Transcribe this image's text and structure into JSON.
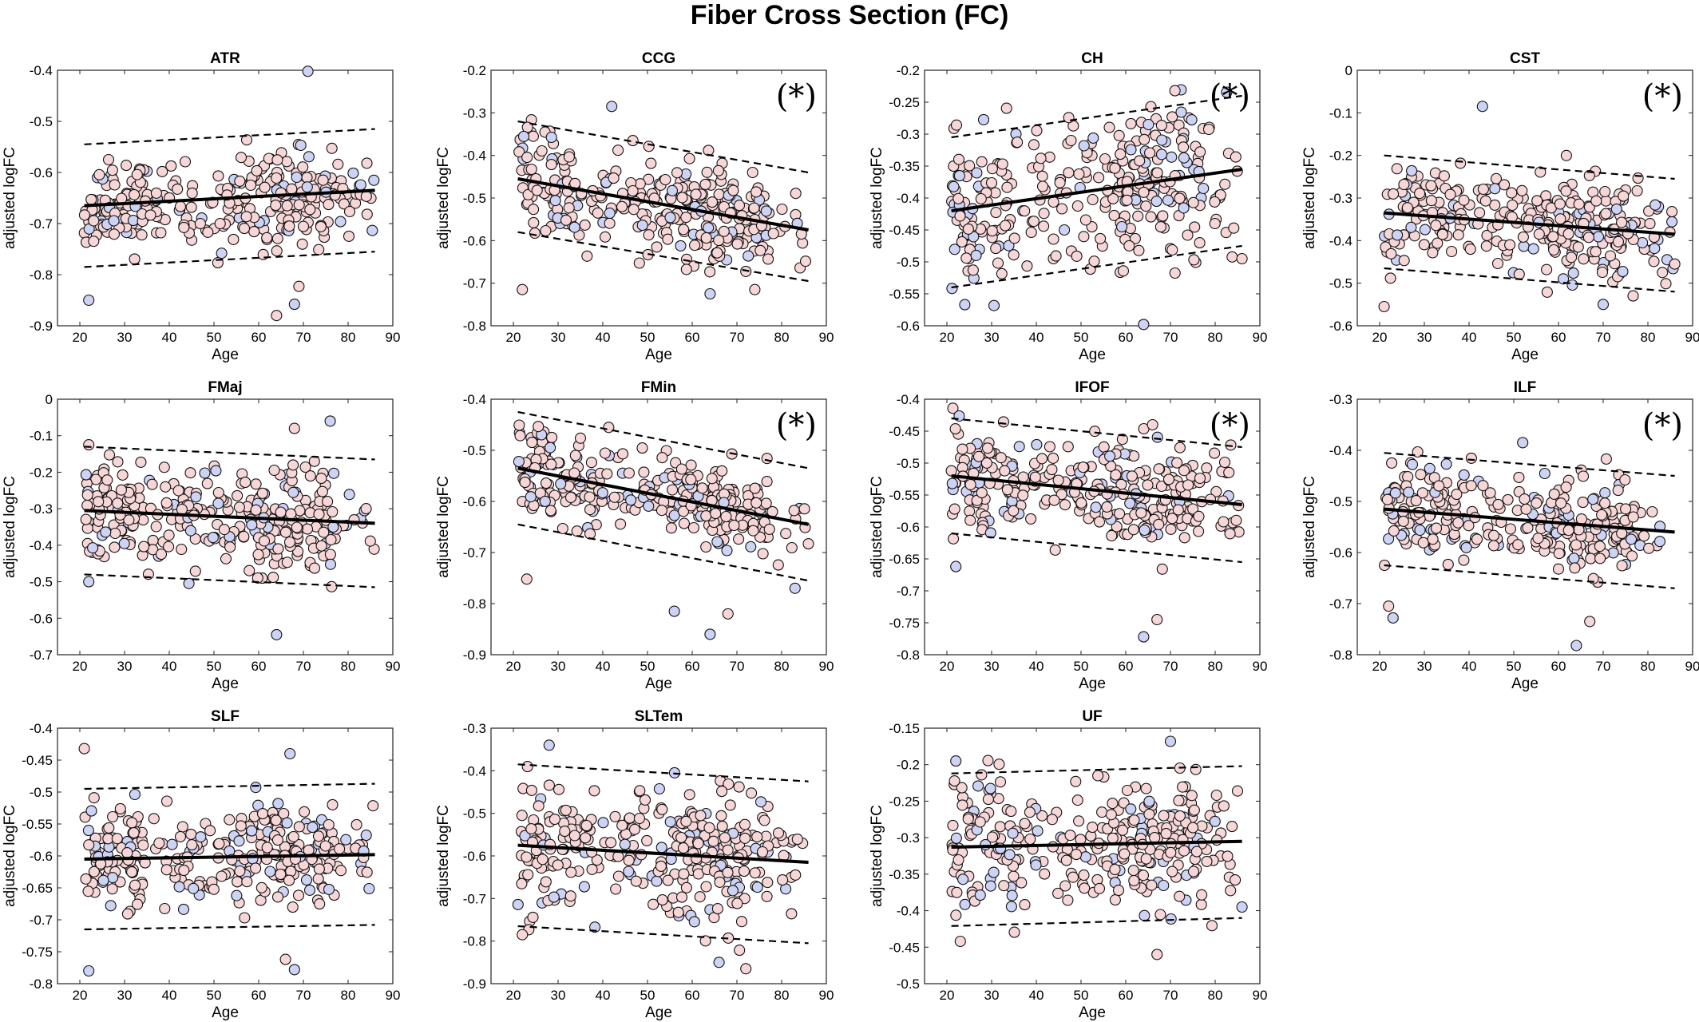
{
  "title": "Fiber Cross Section (FC)",
  "colors": {
    "female": "#f6d6d6",
    "male": "#cdd3f5",
    "line": "#000000"
  },
  "chart_data": [
    {
      "type": "scatter",
      "title": "ATR",
      "xlabel": "Age",
      "ylabel": "adjusted logFC",
      "xlim": [
        15,
        90
      ],
      "ylim": [
        -0.9,
        -0.4
      ],
      "yticks": [
        -0.4,
        -0.5,
        -0.6,
        -0.7,
        -0.8,
        -0.9
      ],
      "yticklabels": [
        "-0.4",
        "-0.5",
        "-0.6",
        "-0.7",
        "-0.8",
        "-0.9"
      ],
      "fit": [
        [
          21,
          -0.665
        ],
        [
          86,
          -0.635
        ]
      ],
      "upper": [
        [
          21,
          -0.545
        ],
        [
          86,
          -0.515
        ]
      ],
      "lower": [
        [
          21,
          -0.785
        ],
        [
          86,
          -0.755
        ]
      ],
      "significant": false,
      "center": -0.65,
      "spread": 0.045,
      "outliers": [
        [
          71,
          -0.402
        ],
        [
          64,
          -0.88
        ],
        [
          68,
          -0.858
        ],
        [
          69,
          -0.823
        ],
        [
          22,
          -0.85
        ]
      ]
    },
    {
      "type": "scatter",
      "title": "CCG",
      "xlabel": "Age",
      "ylabel": "adjusted logFC",
      "xlim": [
        15,
        90
      ],
      "ylim": [
        -0.8,
        -0.2
      ],
      "yticks": [
        -0.2,
        -0.3,
        -0.4,
        -0.5,
        -0.6,
        -0.7,
        -0.8
      ],
      "yticklabels": [
        "-0.2",
        "-0.3",
        "-0.4",
        "-0.5",
        "-0.6",
        "-0.7",
        "-0.8"
      ],
      "fit": [
        [
          21,
          -0.455
        ],
        [
          86,
          -0.575
        ]
      ],
      "upper": [
        [
          21,
          -0.32
        ],
        [
          86,
          -0.44
        ]
      ],
      "lower": [
        [
          21,
          -0.58
        ],
        [
          86,
          -0.695
        ]
      ],
      "significant": true,
      "annotation": "(*)",
      "center": -0.51,
      "spread": 0.06,
      "outliers": [
        [
          42,
          -0.285
        ],
        [
          22,
          -0.715
        ],
        [
          64,
          -0.725
        ],
        [
          74,
          -0.715
        ]
      ]
    },
    {
      "type": "scatter",
      "title": "CH",
      "xlabel": "Age",
      "ylabel": "adjusted logFC",
      "xlim": [
        15,
        90
      ],
      "ylim": [
        -0.6,
        -0.2
      ],
      "yticks": [
        -0.2,
        -0.25,
        -0.3,
        -0.35,
        -0.4,
        -0.45,
        -0.5,
        -0.55,
        -0.6
      ],
      "yticklabels": [
        "-0.2",
        "-0.25",
        "-0.3",
        "-0.35",
        "-0.4",
        "-0.45",
        "-0.5",
        "-0.55",
        "-0.6"
      ],
      "fit": [
        [
          21,
          -0.42
        ],
        [
          86,
          -0.355
        ]
      ],
      "upper": [
        [
          21,
          -0.305
        ],
        [
          86,
          -0.24
        ]
      ],
      "lower": [
        [
          21,
          -0.54
        ],
        [
          86,
          -0.475
        ]
      ],
      "significant": true,
      "annotation": "(*)",
      "center": -0.39,
      "spread": 0.06,
      "outliers": [
        [
          64,
          -0.598
        ],
        [
          71,
          -0.232
        ],
        [
          24,
          -0.567
        ],
        [
          86,
          -0.495
        ]
      ]
    },
    {
      "type": "scatter",
      "title": "CST",
      "xlabel": "Age",
      "ylabel": "adjusted logFC",
      "xlim": [
        15,
        90
      ],
      "ylim": [
        -0.6,
        0
      ],
      "yticks": [
        0,
        -0.1,
        -0.2,
        -0.3,
        -0.4,
        -0.5,
        -0.6
      ],
      "yticklabels": [
        "0",
        "-0.1",
        "-0.2",
        "-0.3",
        "-0.4",
        "-0.5",
        "-0.6"
      ],
      "fit": [
        [
          21,
          -0.335
        ],
        [
          86,
          -0.385
        ]
      ],
      "upper": [
        [
          21,
          -0.2
        ],
        [
          86,
          -0.255
        ]
      ],
      "lower": [
        [
          21,
          -0.465
        ],
        [
          86,
          -0.52
        ]
      ],
      "significant": true,
      "annotation": "(*)",
      "center": -0.36,
      "spread": 0.06,
      "outliers": [
        [
          43,
          -0.085
        ],
        [
          21,
          -0.555
        ],
        [
          70,
          -0.55
        ],
        [
          86,
          -0.455
        ]
      ]
    },
    {
      "type": "scatter",
      "title": "FMaj",
      "xlabel": "Age",
      "ylabel": "adjusted logFC",
      "xlim": [
        15,
        90
      ],
      "ylim": [
        -0.7,
        0
      ],
      "yticks": [
        0,
        -0.1,
        -0.2,
        -0.3,
        -0.4,
        -0.5,
        -0.6,
        -0.7
      ],
      "yticklabels": [
        "0",
        "-0.1",
        "-0.2",
        "-0.3",
        "-0.4",
        "-0.5",
        "-0.6",
        "-0.7"
      ],
      "fit": [
        [
          21,
          -0.305
        ],
        [
          86,
          -0.34
        ]
      ],
      "upper": [
        [
          21,
          -0.13
        ],
        [
          86,
          -0.165
        ]
      ],
      "lower": [
        [
          21,
          -0.48
        ],
        [
          86,
          -0.515
        ]
      ],
      "significant": false,
      "center": -0.32,
      "spread": 0.07,
      "outliers": [
        [
          76,
          -0.06
        ],
        [
          68,
          -0.08
        ],
        [
          64,
          -0.645
        ],
        [
          22,
          -0.125
        ],
        [
          22,
          -0.5
        ]
      ]
    },
    {
      "type": "scatter",
      "title": "FMin",
      "xlabel": "Age",
      "ylabel": "adjusted logFC",
      "xlim": [
        15,
        90
      ],
      "ylim": [
        -0.9,
        -0.4
      ],
      "yticks": [
        -0.4,
        -0.5,
        -0.6,
        -0.7,
        -0.8,
        -0.9
      ],
      "yticklabels": [
        "-0.4",
        "-0.5",
        "-0.6",
        "-0.7",
        "-0.8",
        "-0.9"
      ],
      "fit": [
        [
          21,
          -0.535
        ],
        [
          86,
          -0.645
        ]
      ],
      "upper": [
        [
          21,
          -0.425
        ],
        [
          86,
          -0.535
        ]
      ],
      "lower": [
        [
          21,
          -0.645
        ],
        [
          86,
          -0.755
        ]
      ],
      "significant": true,
      "annotation": "(*)",
      "center": -0.58,
      "spread": 0.045,
      "outliers": [
        [
          64,
          -0.86
        ],
        [
          68,
          -0.82
        ],
        [
          56,
          -0.815
        ],
        [
          23,
          -0.752
        ],
        [
          83,
          -0.77
        ]
      ]
    },
    {
      "type": "scatter",
      "title": "IFOF",
      "xlabel": "Age",
      "ylabel": "adjusted logFC",
      "xlim": [
        15,
        90
      ],
      "ylim": [
        -0.8,
        -0.4
      ],
      "yticks": [
        -0.4,
        -0.45,
        -0.5,
        -0.55,
        -0.6,
        -0.65,
        -0.7,
        -0.75,
        -0.8
      ],
      "yticklabels": [
        "-0.4",
        "-0.45",
        "-0.5",
        "-0.55",
        "-0.6",
        "-0.65",
        "-0.7",
        "-0.75",
        "-0.8"
      ],
      "fit": [
        [
          21,
          -0.52
        ],
        [
          86,
          -0.565
        ]
      ],
      "upper": [
        [
          21,
          -0.43
        ],
        [
          86,
          -0.475
        ]
      ],
      "lower": [
        [
          21,
          -0.61
        ],
        [
          86,
          -0.655
        ]
      ],
      "significant": true,
      "annotation": "(*)",
      "center": -0.54,
      "spread": 0.04,
      "outliers": [
        [
          64,
          -0.772
        ],
        [
          67,
          -0.745
        ],
        [
          22,
          -0.662
        ],
        [
          66,
          -0.44
        ]
      ]
    },
    {
      "type": "scatter",
      "title": "ILF",
      "xlabel": "Age",
      "ylabel": "adjusted logFC",
      "xlim": [
        15,
        90
      ],
      "ylim": [
        -0.8,
        -0.3
      ],
      "yticks": [
        -0.3,
        -0.4,
        -0.5,
        -0.6,
        -0.7,
        -0.8
      ],
      "yticklabels": [
        "-0.3",
        "-0.4",
        "-0.5",
        "-0.6",
        "-0.7",
        "-0.8"
      ],
      "fit": [
        [
          21,
          -0.515
        ],
        [
          86,
          -0.56
        ]
      ],
      "upper": [
        [
          21,
          -0.405
        ],
        [
          86,
          -0.45
        ]
      ],
      "lower": [
        [
          21,
          -0.625
        ],
        [
          86,
          -0.67
        ]
      ],
      "significant": true,
      "annotation": "(*)",
      "center": -0.54,
      "spread": 0.045,
      "outliers": [
        [
          64,
          -0.782
        ],
        [
          22,
          -0.705
        ],
        [
          23,
          -0.728
        ],
        [
          67,
          -0.735
        ],
        [
          52,
          -0.385
        ]
      ]
    },
    {
      "type": "scatter",
      "title": "SLF",
      "xlabel": "Age",
      "ylabel": "adjusted logFC",
      "xlim": [
        15,
        90
      ],
      "ylim": [
        -0.8,
        -0.4
      ],
      "yticks": [
        -0.4,
        -0.45,
        -0.5,
        -0.55,
        -0.6,
        -0.65,
        -0.7,
        -0.75,
        -0.8
      ],
      "yticklabels": [
        "-0.4",
        "-0.45",
        "-0.5",
        "-0.55",
        "-0.6",
        "-0.65",
        "-0.7",
        "-0.75",
        "-0.8"
      ],
      "fit": [
        [
          21,
          -0.605
        ],
        [
          86,
          -0.598
        ]
      ],
      "upper": [
        [
          21,
          -0.495
        ],
        [
          86,
          -0.487
        ]
      ],
      "lower": [
        [
          21,
          -0.715
        ],
        [
          86,
          -0.708
        ]
      ],
      "significant": false,
      "center": -0.6,
      "spread": 0.04,
      "outliers": [
        [
          22,
          -0.78
        ],
        [
          21,
          -0.432
        ],
        [
          68,
          -0.778
        ],
        [
          66,
          -0.762
        ],
        [
          67,
          -0.44
        ]
      ]
    },
    {
      "type": "scatter",
      "title": "SLTem",
      "xlabel": "Age",
      "ylabel": "adjusted logFC",
      "xlim": [
        15,
        90
      ],
      "ylim": [
        -0.9,
        -0.3
      ],
      "yticks": [
        -0.3,
        -0.4,
        -0.5,
        -0.6,
        -0.7,
        -0.8,
        -0.9
      ],
      "yticklabels": [
        "-0.3",
        "-0.4",
        "-0.5",
        "-0.6",
        "-0.7",
        "-0.8",
        "-0.9"
      ],
      "fit": [
        [
          21,
          -0.575
        ],
        [
          86,
          -0.615
        ]
      ],
      "upper": [
        [
          21,
          -0.385
        ],
        [
          86,
          -0.425
        ]
      ],
      "lower": [
        [
          21,
          -0.765
        ],
        [
          86,
          -0.805
        ]
      ],
      "significant": false,
      "center": -0.6,
      "spread": 0.075,
      "outliers": [
        [
          28,
          -0.34
        ],
        [
          72,
          -0.865
        ],
        [
          66,
          -0.85
        ],
        [
          22,
          -0.785
        ]
      ]
    },
    {
      "type": "scatter",
      "title": "UF",
      "xlabel": "Age",
      "ylabel": "adjusted logFC",
      "xlim": [
        15,
        90
      ],
      "ylim": [
        -0.5,
        -0.15
      ],
      "yticks": [
        -0.15,
        -0.2,
        -0.25,
        -0.3,
        -0.35,
        -0.4,
        -0.45,
        -0.5
      ],
      "yticklabels": [
        "-0.15",
        "-0.2",
        "-0.25",
        "-0.3",
        "-0.35",
        "-0.4",
        "-0.45",
        "-0.5"
      ],
      "fit": [
        [
          21,
          -0.313
        ],
        [
          86,
          -0.305
        ]
      ],
      "upper": [
        [
          21,
          -0.212
        ],
        [
          86,
          -0.202
        ]
      ],
      "lower": [
        [
          21,
          -0.421
        ],
        [
          86,
          -0.41
        ]
      ],
      "significant": false,
      "center": -0.31,
      "spread": 0.045,
      "outliers": [
        [
          22,
          -0.195
        ],
        [
          67,
          -0.46
        ],
        [
          70,
          -0.168
        ],
        [
          23,
          -0.442
        ],
        [
          86,
          -0.395
        ]
      ]
    }
  ]
}
